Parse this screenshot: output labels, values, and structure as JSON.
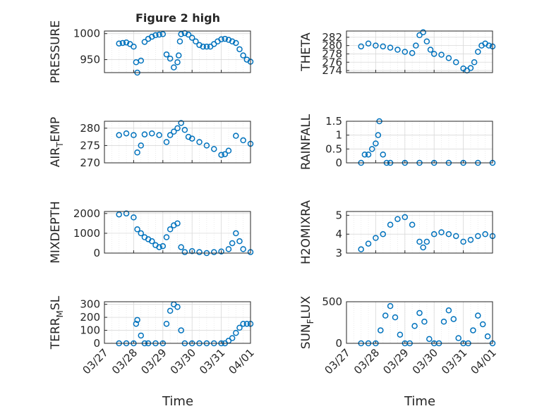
{
  "window": {
    "title": "Figure 2 high"
  },
  "x_axis": {
    "label": "Time",
    "tick_labels": [
      "03/27",
      "03/28",
      "03/29",
      "03/30",
      "03/31",
      "04/01"
    ],
    "range": [
      "2023-03-27",
      "2023-04-01"
    ]
  },
  "colors": {
    "series": "#0072bd",
    "grid": "#e6e6e6",
    "axis": "#262626"
  },
  "chart_data": [
    {
      "id": "pressure",
      "type": "scatter",
      "title": "Figure 2 high",
      "xlabel": "",
      "ylabel": "PRESSURE",
      "ylim": [
        925,
        1005
      ],
      "yticks": [
        950,
        1000
      ],
      "ytick_labels": [
        "950",
        "1000"
      ],
      "grid": true,
      "x": [
        "03/27 12:00",
        "03/27 15:00",
        "03/27 18:00",
        "03/27 21:00",
        "03/28 00:00",
        "03/28 02:00",
        "03/28 03:00",
        "03/28 06:00",
        "03/28 09:00",
        "03/28 12:00",
        "03/28 15:00",
        "03/28 18:00",
        "03/28 21:00",
        "03/29 00:00",
        "03/29 03:00",
        "03/29 06:00",
        "03/29 09:00",
        "03/29 12:00",
        "03/29 13:00",
        "03/29 14:00",
        "03/29 15:00",
        "03/29 18:00",
        "03/29 21:00",
        "03/30 00:00",
        "03/30 03:00",
        "03/30 06:00",
        "03/30 09:00",
        "03/30 12:00",
        "03/30 15:00",
        "03/30 18:00",
        "03/30 21:00",
        "03/31 00:00",
        "03/31 03:00",
        "03/31 06:00",
        "03/31 09:00",
        "03/31 12:00",
        "03/31 15:00",
        "03/31 18:00",
        "03/31 21:00",
        "04/01 00:00"
      ],
      "y": [
        981,
        982,
        983,
        980,
        975,
        945,
        925,
        948,
        984,
        990,
        994,
        997,
        998,
        999,
        960,
        952,
        935,
        945,
        958,
        985,
        999,
        1001,
        998,
        992,
        985,
        978,
        975,
        975,
        975,
        980,
        985,
        989,
        990,
        988,
        985,
        982,
        970,
        958,
        950,
        946
      ]
    },
    {
      "id": "theta",
      "type": "scatter",
      "title": "",
      "xlabel": "",
      "ylabel": "THETA",
      "ylim": [
        273.5,
        283.5
      ],
      "yticks": [
        274,
        276,
        278,
        280,
        282
      ],
      "ytick_labels": [
        "274",
        "276",
        "278",
        "280",
        "282"
      ],
      "grid": true,
      "x": [
        "03/27 12:00",
        "03/27 18:00",
        "03/28 00:00",
        "03/28 06:00",
        "03/28 12:00",
        "03/28 18:00",
        "03/29 00:00",
        "03/29 06:00",
        "03/29 09:00",
        "03/29 12:00",
        "03/29 15:00",
        "03/29 18:00",
        "03/29 21:00",
        "03/30 00:00",
        "03/30 06:00",
        "03/30 12:00",
        "03/30 18:00",
        "03/31 00:00",
        "03/31 03:00",
        "03/31 06:00",
        "03/31 09:00",
        "03/31 12:00",
        "03/31 15:00",
        "03/31 18:00",
        "03/31 21:00",
        "04/01 00:00"
      ],
      "y": [
        279.8,
        280.5,
        280.0,
        279.8,
        279.5,
        279.0,
        278.5,
        278.2,
        280.0,
        282.5,
        283.2,
        281.0,
        279.0,
        278.0,
        277.8,
        277.0,
        276.0,
        274.5,
        274.0,
        274.6,
        276.0,
        278.5,
        280.0,
        280.5,
        280.0,
        279.8
      ]
    },
    {
      "id": "air_temp",
      "type": "scatter",
      "title": "",
      "xlabel": "",
      "ylabel": "AIR_TEMP",
      "ylim": [
        270,
        282
      ],
      "yticks": [
        270,
        275,
        280
      ],
      "ytick_labels": [
        "270",
        "275",
        "280"
      ],
      "grid": true,
      "x": [
        "03/27 12:00",
        "03/27 18:00",
        "03/28 00:00",
        "03/28 03:00",
        "03/28 06:00",
        "03/28 09:00",
        "03/28 15:00",
        "03/28 21:00",
        "03/29 03:00",
        "03/29 06:00",
        "03/29 09:00",
        "03/29 12:00",
        "03/29 15:00",
        "03/29 18:00",
        "03/29 21:00",
        "03/30 00:00",
        "03/30 06:00",
        "03/30 12:00",
        "03/30 18:00",
        "03/31 00:00",
        "03/31 03:00",
        "03/31 06:00",
        "03/31 12:00",
        "03/31 18:00",
        "04/01 00:00"
      ],
      "y": [
        278.0,
        278.5,
        278.0,
        273.0,
        275.0,
        278.2,
        278.5,
        278.0,
        276.0,
        278.0,
        279.0,
        280.0,
        281.5,
        279.5,
        277.5,
        277.0,
        276.0,
        275.0,
        274.0,
        272.3,
        272.5,
        273.5,
        277.8,
        276.5,
        275.5
      ]
    },
    {
      "id": "rainfall",
      "type": "scatter",
      "title": "",
      "xlabel": "",
      "ylabel": "RAINFALL",
      "ylim": [
        0,
        1.5
      ],
      "yticks": [
        0,
        0.5,
        1,
        1.5
      ],
      "ytick_labels": [
        "0",
        "0.5",
        "1",
        "1.5"
      ],
      "grid": true,
      "x": [
        "03/27 12:00",
        "03/27 15:00",
        "03/27 18:00",
        "03/27 21:00",
        "03/28 00:00",
        "03/28 02:00",
        "03/28 03:00",
        "03/28 06:00",
        "03/28 09:00",
        "03/28 12:00",
        "03/29 00:00",
        "03/29 12:00",
        "03/30 00:00",
        "03/30 12:00",
        "03/31 00:00",
        "03/31 12:00",
        "04/01 00:00"
      ],
      "y": [
        0,
        0.3,
        0.3,
        0.5,
        0.7,
        1.0,
        1.5,
        0.3,
        0,
        0,
        0,
        0,
        0,
        0,
        0,
        0,
        0
      ]
    },
    {
      "id": "mixdepth",
      "type": "scatter",
      "title": "",
      "xlabel": "",
      "ylabel": "MIXDEPTH",
      "ylim": [
        0,
        2100
      ],
      "yticks": [
        0,
        1000,
        2000
      ],
      "ytick_labels": [
        "0",
        "1000",
        "2000"
      ],
      "grid": true,
      "x": [
        "03/27 12:00",
        "03/27 18:00",
        "03/28 00:00",
        "03/28 03:00",
        "03/28 06:00",
        "03/28 09:00",
        "03/28 12:00",
        "03/28 15:00",
        "03/28 18:00",
        "03/28 21:00",
        "03/29 00:00",
        "03/29 03:00",
        "03/29 06:00",
        "03/29 09:00",
        "03/29 12:00",
        "03/29 15:00",
        "03/29 18:00",
        "03/30 00:00",
        "03/30 06:00",
        "03/30 12:00",
        "03/30 18:00",
        "03/31 00:00",
        "03/31 06:00",
        "03/31 09:00",
        "03/31 12:00",
        "03/31 15:00",
        "03/31 18:00",
        "04/01 00:00"
      ],
      "y": [
        1950,
        2000,
        1800,
        1200,
        1000,
        800,
        700,
        600,
        400,
        300,
        350,
        800,
        1200,
        1400,
        1500,
        300,
        50,
        100,
        50,
        0,
        50,
        80,
        200,
        500,
        1000,
        600,
        200,
        50
      ]
    },
    {
      "id": "h2omixra",
      "type": "scatter",
      "title": "",
      "xlabel": "",
      "ylabel": "H2OMIXRA",
      "ylim": [
        3,
        5.2
      ],
      "yticks": [
        3,
        4,
        5
      ],
      "ytick_labels": [
        "3",
        "4",
        "5"
      ],
      "grid": true,
      "x": [
        "03/27 12:00",
        "03/27 18:00",
        "03/28 00:00",
        "03/28 06:00",
        "03/28 12:00",
        "03/28 18:00",
        "03/29 00:00",
        "03/29 06:00",
        "03/29 12:00",
        "03/29 15:00",
        "03/29 18:00",
        "03/30 00:00",
        "03/30 06:00",
        "03/30 12:00",
        "03/30 18:00",
        "03/31 00:00",
        "03/31 06:00",
        "03/31 12:00",
        "03/31 18:00",
        "04/01 00:00"
      ],
      "y": [
        3.2,
        3.5,
        3.8,
        4.0,
        4.5,
        4.8,
        4.9,
        4.5,
        3.6,
        3.3,
        3.6,
        4.0,
        4.1,
        4.0,
        3.9,
        3.6,
        3.7,
        3.9,
        4.0,
        3.9
      ]
    },
    {
      "id": "terr_msl",
      "type": "scatter",
      "title": "",
      "xlabel": "",
      "ylabel": "TERR_MSL",
      "ylim": [
        0,
        320
      ],
      "yticks": [
        0,
        100,
        200,
        300
      ],
      "ytick_labels": [
        "0",
        "100",
        "200",
        "300"
      ],
      "grid": true,
      "x": [
        "03/27 12:00",
        "03/27 18:00",
        "03/28 00:00",
        "03/28 02:00",
        "03/28 03:00",
        "03/28 06:00",
        "03/28 09:00",
        "03/28 12:00",
        "03/28 18:00",
        "03/29 00:00",
        "03/29 03:00",
        "03/29 06:00",
        "03/29 09:00",
        "03/29 12:00",
        "03/29 15:00",
        "03/29 18:00",
        "03/30 00:00",
        "03/30 06:00",
        "03/30 12:00",
        "03/30 18:00",
        "03/31 00:00",
        "03/31 03:00",
        "03/31 06:00",
        "03/31 09:00",
        "03/31 12:00",
        "03/31 15:00",
        "03/31 18:00",
        "03/31 21:00",
        "04/01 00:00"
      ],
      "y": [
        0,
        0,
        0,
        150,
        180,
        60,
        0,
        0,
        0,
        0,
        150,
        250,
        300,
        280,
        100,
        0,
        0,
        0,
        0,
        0,
        0,
        0,
        20,
        40,
        80,
        120,
        150,
        150,
        150
      ]
    },
    {
      "id": "sun_flux",
      "type": "scatter",
      "title": "",
      "xlabel": "",
      "ylabel": "SUN_FLUX",
      "ylim": [
        0,
        480
      ],
      "yticks": [
        0,
        500
      ],
      "ytick_labels": [
        "0",
        "500"
      ],
      "grid": true,
      "x": [
        "03/27 12:00",
        "03/27 18:00",
        "03/28 00:00",
        "03/28 04:00",
        "03/28 08:00",
        "03/28 12:00",
        "03/28 16:00",
        "03/28 20:00",
        "03/29 00:00",
        "03/29 04:00",
        "03/29 08:00",
        "03/29 12:00",
        "03/29 16:00",
        "03/29 20:00",
        "03/30 00:00",
        "03/30 04:00",
        "03/30 08:00",
        "03/30 12:00",
        "03/30 16:00",
        "03/30 20:00",
        "03/31 00:00",
        "03/31 04:00",
        "03/31 08:00",
        "03/31 12:00",
        "03/31 16:00",
        "03/31 20:00",
        "04/01 00:00"
      ],
      "y": [
        0,
        0,
        0,
        150,
        320,
        430,
        300,
        100,
        0,
        0,
        200,
        350,
        250,
        50,
        0,
        0,
        250,
        380,
        280,
        60,
        0,
        0,
        150,
        320,
        220,
        80,
        0
      ]
    }
  ]
}
